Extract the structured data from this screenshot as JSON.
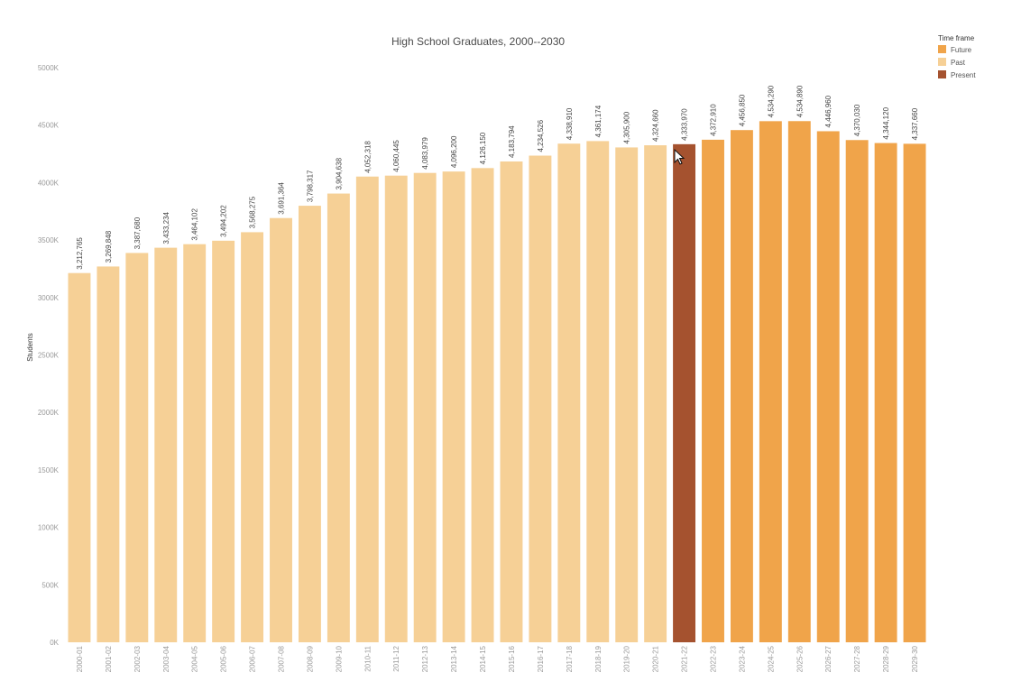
{
  "chart_data": {
    "type": "bar",
    "title": "High School Graduates, 2000--2030",
    "xlabel": "",
    "ylabel": "Students",
    "ylim": [
      0,
      5000000
    ],
    "yticks": [
      0,
      500000,
      1000000,
      1500000,
      2000000,
      2500000,
      3000000,
      3500000,
      4000000,
      4500000,
      5000000
    ],
    "ytick_labels": [
      "0K",
      "500K",
      "1000K",
      "1500K",
      "2000K",
      "2500K",
      "3000K",
      "3500K",
      "4000K",
      "4500K",
      "5000K"
    ],
    "grid": false,
    "categories": [
      "2000-01",
      "2001-02",
      "2002-03",
      "2003-04",
      "2004-05",
      "2005-06",
      "2006-07",
      "2007-08",
      "2008-09",
      "2009-10",
      "2010-11",
      "2011-12",
      "2012-13",
      "2013-14",
      "2014-15",
      "2015-16",
      "2016-17",
      "2017-18",
      "2018-19",
      "2019-20",
      "2020-21",
      "2021-22",
      "2022-23",
      "2023-24",
      "2024-25",
      "2025-26",
      "2026-27",
      "2027-28",
      "2028-29",
      "2029-30"
    ],
    "values": [
      3212765,
      3269848,
      3387680,
      3433234,
      3464102,
      3494202,
      3568275,
      3691364,
      3798317,
      3904638,
      4052318,
      4060445,
      4083979,
      4096200,
      4126150,
      4183794,
      4234526,
      4338910,
      4361174,
      4305900,
      4324660,
      4333970,
      4372910,
      4456850,
      4534290,
      4534890,
      4446960,
      4370030,
      4344120,
      4337660
    ],
    "value_labels": [
      "3,212,765",
      "3,269,848",
      "3,387,680",
      "3,433,234",
      "3,464,102",
      "3,494,202",
      "3,568,275",
      "3,691,364",
      "3,798,317",
      "3,904,638",
      "4,052,318",
      "4,060,445",
      "4,083,979",
      "4,096,200",
      "4,126,150",
      "4,183,794",
      "4,234,526",
      "4,338,910",
      "4,361,174",
      "4,305,900",
      "4,324,660",
      "4,333,970",
      "4,372,910",
      "4,456,850",
      "4,534,290",
      "4,534,890",
      "4,446,960",
      "4,370,030",
      "4,344,120",
      "4,337,660"
    ],
    "time_frame": [
      "Past",
      "Past",
      "Past",
      "Past",
      "Past",
      "Past",
      "Past",
      "Past",
      "Past",
      "Past",
      "Past",
      "Past",
      "Past",
      "Past",
      "Past",
      "Past",
      "Past",
      "Past",
      "Past",
      "Past",
      "Past",
      "Present",
      "Future",
      "Future",
      "Future",
      "Future",
      "Future",
      "Future",
      "Future",
      "Future"
    ],
    "legend": {
      "title": "Time frame",
      "position": "top-right",
      "entries": [
        {
          "label": "Future",
          "color": "#f0a44a"
        },
        {
          "label": "Past",
          "color": "#f6d096"
        },
        {
          "label": "Present",
          "color": "#a5522f"
        }
      ]
    }
  }
}
